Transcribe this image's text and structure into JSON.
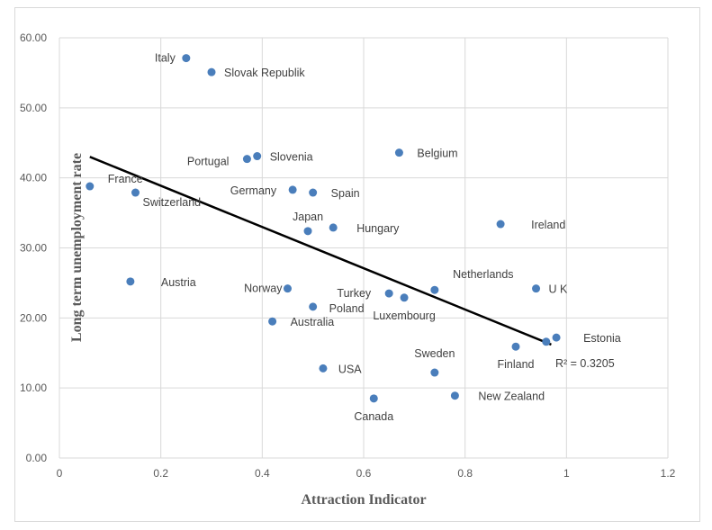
{
  "chart_data": {
    "type": "scatter",
    "title": "",
    "xlabel": "Attraction Indicator",
    "ylabel": "Long term unemployment rate",
    "xlim": [
      0,
      1.2
    ],
    "ylim": [
      0,
      60
    ],
    "xticks": [
      "0",
      "0.2",
      "0.4",
      "0.6",
      "0.8",
      "1",
      "1.2"
    ],
    "yticks": [
      "0.00",
      "10.00",
      "20.00",
      "30.00",
      "40.00",
      "50.00",
      "60.00"
    ],
    "grid": true,
    "marker_color": "#4a7ebb",
    "points": [
      {
        "label": "Italy",
        "x": 0.25,
        "y": 57.1
      },
      {
        "label": "Slovak Republik",
        "x": 0.3,
        "y": 55.1
      },
      {
        "label": "Portugal",
        "x": 0.37,
        "y": 42.7
      },
      {
        "label": "Slovenia",
        "x": 0.39,
        "y": 43.1
      },
      {
        "label": "Belgium",
        "x": 0.67,
        "y": 43.6
      },
      {
        "label": "France",
        "x": 0.06,
        "y": 38.8
      },
      {
        "label": "Switzerland",
        "x": 0.15,
        "y": 37.9
      },
      {
        "label": "Germany",
        "x": 0.46,
        "y": 38.3
      },
      {
        "label": "Spain",
        "x": 0.5,
        "y": 37.9
      },
      {
        "label": "Japan",
        "x": 0.49,
        "y": 32.4
      },
      {
        "label": "Hungary",
        "x": 0.54,
        "y": 32.9
      },
      {
        "label": "Ireland",
        "x": 0.87,
        "y": 33.4
      },
      {
        "label": "Austria",
        "x": 0.14,
        "y": 25.2
      },
      {
        "label": "Norway",
        "x": 0.45,
        "y": 24.2
      },
      {
        "label": "Turkey",
        "x": 0.65,
        "y": 23.5
      },
      {
        "label": "Luxembourg",
        "x": 0.68,
        "y": 22.9
      },
      {
        "label": "Netherlands",
        "x": 0.74,
        "y": 24.0
      },
      {
        "label": "U K",
        "x": 0.94,
        "y": 24.2
      },
      {
        "label": "Poland",
        "x": 0.5,
        "y": 21.6
      },
      {
        "label": "Australia",
        "x": 0.42,
        "y": 19.5
      },
      {
        "label": "Estonia",
        "x": 0.98,
        "y": 17.2
      },
      {
        "label": "",
        "x": 0.96,
        "y": 16.6
      },
      {
        "label": "Finland",
        "x": 0.9,
        "y": 15.9
      },
      {
        "label": "Sweden",
        "x": 0.74,
        "y": 12.2
      },
      {
        "label": "USA",
        "x": 0.52,
        "y": 12.8
      },
      {
        "label": "Canada",
        "x": 0.62,
        "y": 8.5
      },
      {
        "label": "New Zealand",
        "x": 0.78,
        "y": 8.9
      }
    ],
    "trendline": {
      "x": [
        0.06,
        0.97
      ],
      "y": [
        43.0,
        16.2
      ],
      "label": "R² = 0.3205"
    }
  }
}
